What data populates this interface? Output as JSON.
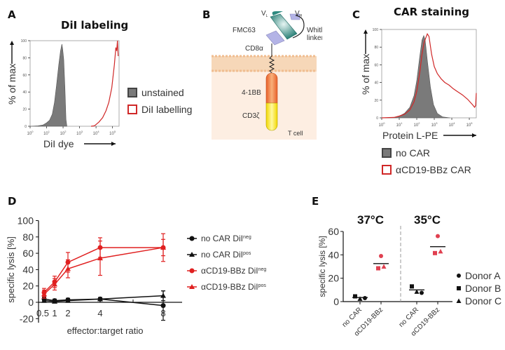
{
  "panels": {
    "A": {
      "letter": "A",
      "title": "DiI labeling"
    },
    "B": {
      "letter": "B"
    },
    "C": {
      "letter": "C",
      "title": "CAR staining"
    },
    "D": {
      "letter": "D"
    },
    "E": {
      "letter": "E"
    }
  },
  "diagram_B": {
    "labels": {
      "vl": "V",
      "vl_sub": "L",
      "vh": "V",
      "vh_sub": "H",
      "fmc63": "FMC63",
      "whitlow": "Whitlow",
      "linker": "linker",
      "cd8a": "CD8α",
      "bb": "4-1BB",
      "cd3z": "CD3ζ",
      "tcell": "T cell"
    },
    "colors": {
      "scfv_main": "#2e8a80",
      "scfv_secondary": "#b3b3e6",
      "bb_domain": "#f07a35",
      "cd3z_domain": "#f5e83a",
      "membrane": "#f3c9a0",
      "cytoplasm": "#fdeee2"
    }
  },
  "chart_data": [
    {
      "id": "A",
      "type": "area",
      "title": "DiI labeling",
      "xlabel": "DiI dye",
      "ylabel": "% of max",
      "xscale": "log",
      "xlim": [
        1,
        250000
      ],
      "ylim": [
        0,
        100
      ],
      "xticks": [
        {
          "v": 1,
          "base": "10",
          "exp": "0"
        },
        {
          "v": 10,
          "base": "10",
          "exp": "1"
        },
        {
          "v": 100,
          "base": "10",
          "exp": "2"
        },
        {
          "v": 1000,
          "base": "10",
          "exp": "3"
        },
        {
          "v": 10000,
          "base": "10",
          "exp": "4"
        },
        {
          "v": 100000,
          "base": "10",
          "exp": "5"
        }
      ],
      "yticks": [
        "0",
        "20",
        "40",
        "60",
        "80",
        "100"
      ],
      "series": [
        {
          "name": "unstained",
          "style": "filled",
          "color": "#7a7a7a",
          "x": [
            1,
            3,
            6,
            10,
            15,
            22,
            30,
            40,
            55,
            70,
            85,
            95,
            110,
            130,
            150,
            170
          ],
          "y": [
            0,
            0.5,
            1.5,
            4,
            7,
            14,
            28,
            48,
            72,
            88,
            96,
            90,
            78,
            45,
            8,
            0
          ]
        },
        {
          "name": "DiI labelling",
          "style": "line",
          "color": "#d02828",
          "x": [
            5000,
            8000,
            10000,
            15000,
            25000,
            40000,
            60000,
            90000,
            130000,
            160000,
            180000,
            200000,
            220000
          ],
          "y": [
            0,
            0.5,
            2,
            5,
            10,
            18,
            28,
            45,
            72,
            92,
            88,
            100,
            82
          ]
        }
      ],
      "legend": [
        "unstained",
        "DiI labelling"
      ],
      "legend_position": "right"
    },
    {
      "id": "C",
      "type": "area",
      "title": "CAR staining",
      "xlabel": "Protein L-PE",
      "ylabel": "% of max",
      "xscale": "log",
      "xlim": [
        1,
        250000
      ],
      "ylim": [
        0,
        100
      ],
      "xticks": [
        {
          "v": 1,
          "base": "10",
          "exp": "0"
        },
        {
          "v": 10,
          "base": "10",
          "exp": "1"
        },
        {
          "v": 100,
          "base": "10",
          "exp": "2"
        },
        {
          "v": 1000,
          "base": "10",
          "exp": "3"
        },
        {
          "v": 10000,
          "base": "10",
          "exp": "4"
        },
        {
          "v": 100000,
          "base": "10",
          "exp": "5"
        }
      ],
      "yticks": [
        "0",
        "20",
        "40",
        "60",
        "80",
        "100"
      ],
      "series": [
        {
          "name": "no CAR",
          "style": "filled",
          "color": "#7a7a7a",
          "x": [
            1,
            5,
            10,
            20,
            40,
            70,
            100,
            150,
            200,
            250,
            300,
            400,
            600,
            900,
            1500,
            3000,
            8000
          ],
          "y": [
            0,
            0.5,
            2,
            5,
            12,
            25,
            42,
            70,
            88,
            93,
            88,
            65,
            35,
            15,
            5,
            1,
            0
          ]
        },
        {
          "name": "αCD19-BBz CAR",
          "style": "line",
          "color": "#d02828",
          "x": [
            1,
            5,
            10,
            20,
            40,
            70,
            100,
            150,
            200,
            260,
            320,
            400,
            500,
            700,
            1000,
            1500,
            2500,
            4000,
            7000,
            12000,
            20000,
            40000,
            80000,
            150000,
            200000,
            230000,
            250000
          ],
          "y": [
            0,
            0.5,
            2,
            4,
            9,
            18,
            30,
            52,
            72,
            85,
            90,
            95,
            92,
            72,
            58,
            50,
            44,
            40,
            37,
            33,
            30,
            26,
            21,
            15,
            12,
            14,
            28
          ]
        }
      ],
      "legend": [
        "no CAR",
        "αCD19-BBz CAR"
      ],
      "legend_position": "bottom"
    },
    {
      "id": "D",
      "type": "line",
      "title": "",
      "xlabel": "effector:target ratio",
      "ylabel": "specific lysis [%]",
      "xticks": [
        "0.5",
        "1",
        "2",
        "4",
        "8"
      ],
      "yticks": [
        "-20",
        "0",
        "20",
        "40",
        "60",
        "80",
        "100"
      ],
      "ylim": [
        -25,
        100
      ],
      "x": [
        0.5,
        1,
        2,
        4,
        8
      ],
      "series": [
        {
          "name": "no CAR DiI",
          "sup": "neg",
          "marker": "circle",
          "color": "#111111",
          "values": [
            4,
            2,
            3,
            4,
            -4
          ],
          "err": [
            2,
            2,
            2,
            2,
            18
          ]
        },
        {
          "name": "no CAR DiI",
          "sup": "pos",
          "marker": "triangle",
          "color": "#111111",
          "values": [
            2,
            1,
            2,
            4,
            8
          ],
          "err": [
            2,
            1,
            2,
            1,
            6
          ]
        },
        {
          "name": "αCD19-BBz DiI",
          "sup": "neg",
          "marker": "circle",
          "color": "#e02020",
          "values": [
            12,
            25,
            49,
            67,
            67
          ],
          "err": [
            5,
            7,
            12,
            12,
            17
          ]
        },
        {
          "name": "αCD19-BBz DiI",
          "sup": "pos",
          "marker": "triangle",
          "color": "#e02020",
          "values": [
            10,
            22,
            41,
            54,
            67
          ],
          "err": [
            5,
            7,
            11,
            21,
            10
          ]
        }
      ],
      "legend_position": "right"
    },
    {
      "id": "E",
      "type": "scatter",
      "title": "",
      "xlabel": "",
      "ylabel": "specific lysis [%]",
      "ylim": [
        0,
        60
      ],
      "yticks": [
        "0",
        "20",
        "40",
        "60"
      ],
      "groups": [
        {
          "condition": "37°C",
          "categories": [
            {
              "label": "no CAR",
              "color": "#111111",
              "mean": 3.5,
              "points": [
                {
                  "donor": "A",
                  "marker": "circle",
                  "v": 3
                },
                {
                  "donor": "B",
                  "marker": "square",
                  "v": 4.5
                },
                {
                  "donor": "C",
                  "marker": "triangle",
                  "v": 2.5
                }
              ]
            },
            {
              "label": "αCD19-BBz",
              "color": "#e04050",
              "mean": 32.5,
              "points": [
                {
                  "donor": "A",
                  "marker": "circle",
                  "v": 39
                },
                {
                  "donor": "B",
                  "marker": "square",
                  "v": 28.5
                },
                {
                  "donor": "C",
                  "marker": "triangle",
                  "v": 30
                }
              ]
            }
          ]
        },
        {
          "condition": "35°C",
          "categories": [
            {
              "label": "no CAR",
              "color": "#111111",
              "mean": 10,
              "points": [
                {
                  "donor": "A",
                  "marker": "circle",
                  "v": 7.5
                },
                {
                  "donor": "B",
                  "marker": "square",
                  "v": 13
                },
                {
                  "donor": "C",
                  "marker": "triangle",
                  "v": 8.5
                }
              ]
            },
            {
              "label": "αCD19-BBz",
              "color": "#e04050",
              "mean": 47,
              "points": [
                {
                  "donor": "A",
                  "marker": "circle",
                  "v": 56
                },
                {
                  "donor": "B",
                  "marker": "square",
                  "v": 41.5
                },
                {
                  "donor": "C",
                  "marker": "triangle",
                  "v": 43
                }
              ]
            }
          ]
        }
      ],
      "legend": [
        {
          "label": "Donor A",
          "marker": "circle"
        },
        {
          "label": "Donor B",
          "marker": "square"
        },
        {
          "label": "Donor C",
          "marker": "triangle"
        }
      ],
      "legend_position": "right"
    }
  ]
}
